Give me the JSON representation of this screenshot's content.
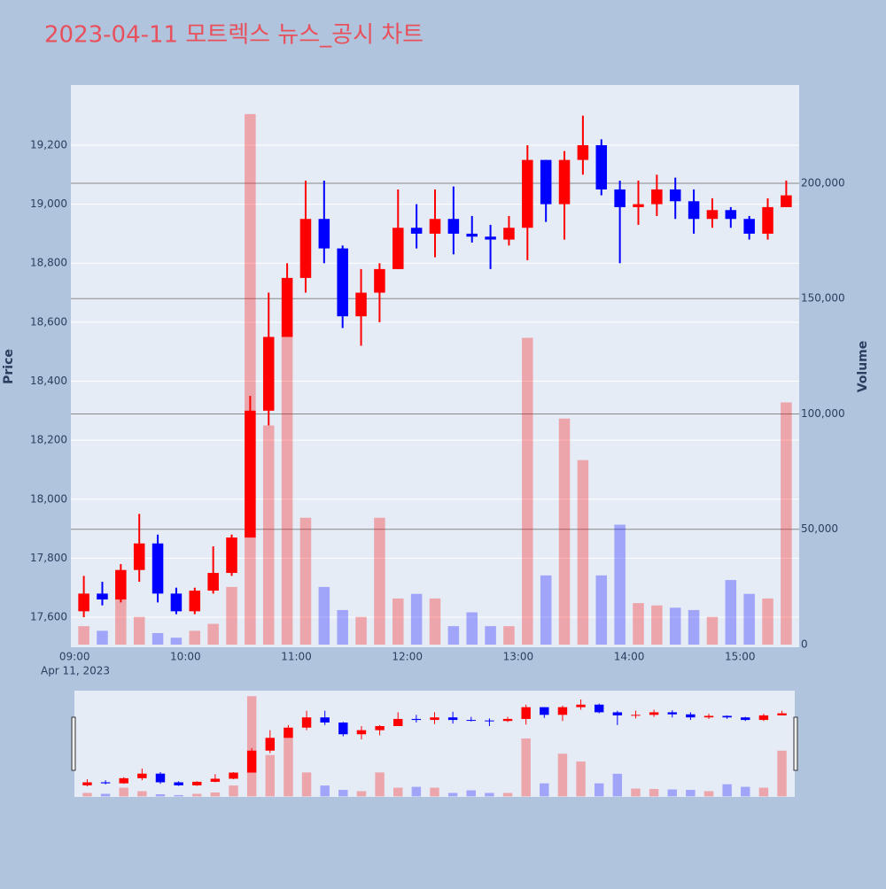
{
  "chart_data": {
    "type": "candlestick",
    "title": "2023-04-11 모트렉스 뉴스_공시 차트",
    "x_date_label": "Apr 11, 2023",
    "ylabel": "Price",
    "y2label": "Volume",
    "increasing_color": "#ff0000",
    "decreasing_color": "#0000ff",
    "grid": true,
    "rangeslider": true,
    "xlim": [
      "08:58",
      "15:32"
    ],
    "xticks": [
      "09:00",
      "10:00",
      "11:00",
      "12:00",
      "13:00",
      "14:00",
      "15:00"
    ],
    "ylim": [
      17498,
      19404
    ],
    "yticks": [
      {
        "value": 17600,
        "label": "17,600"
      },
      {
        "value": 17800,
        "label": "17,800"
      },
      {
        "value": 18000,
        "label": "18,000"
      },
      {
        "value": 18200,
        "label": "18,200"
      },
      {
        "value": 18400,
        "label": "18,400"
      },
      {
        "value": 18600,
        "label": "18,600"
      },
      {
        "value": 18800,
        "label": "18,800"
      },
      {
        "value": 19000,
        "label": "19,000"
      },
      {
        "value": 19200,
        "label": "19,200"
      }
    ],
    "y2lim": [
      -1150,
      242600
    ],
    "y2ticks": [
      0,
      {
        "value": 50000,
        "label": "50,000"
      },
      {
        "value": 100000,
        "label": "100,000"
      },
      {
        "value": 150000,
        "label": "150,000"
      },
      {
        "value": 200000,
        "label": "200,000"
      }
    ],
    "x": [
      "09:00",
      "09:10",
      "09:20",
      "09:30",
      "09:40",
      "09:50",
      "10:00",
      "10:10",
      "10:20",
      "10:30",
      "10:40",
      "10:50",
      "11:00",
      "11:10",
      "11:20",
      "11:30",
      "11:40",
      "11:50",
      "12:00",
      "12:10",
      "12:20",
      "12:30",
      "12:40",
      "12:50",
      "13:00",
      "13:10",
      "13:20",
      "13:30",
      "13:40",
      "13:50",
      "14:00",
      "14:10",
      "14:20",
      "14:30",
      "14:40",
      "14:50",
      "15:00",
      "15:10",
      "15:20"
    ],
    "open": [
      17620,
      17680,
      17660,
      17760,
      17850,
      17680,
      17620,
      17690,
      17750,
      17870,
      18300,
      18550,
      18750,
      18950,
      18850,
      18620,
      18700,
      18780,
      18920,
      18900,
      18950,
      18900,
      18890,
      18880,
      18920,
      19150,
      19000,
      19150,
      19200,
      19050,
      18990,
      19000,
      19050,
      19010,
      18950,
      18980,
      18950,
      18900,
      18990
    ],
    "high": [
      17740,
      17720,
      17780,
      17950,
      17880,
      17700,
      17700,
      17840,
      17880,
      18350,
      18700,
      18800,
      19080,
      19080,
      18860,
      18780,
      18800,
      19050,
      19000,
      19050,
      19060,
      18960,
      18930,
      18960,
      19200,
      19150,
      19180,
      19300,
      19220,
      19080,
      19080,
      19100,
      19090,
      19050,
      19020,
      18990,
      18960,
      19020,
      19080
    ],
    "low": [
      17600,
      17640,
      17650,
      17720,
      17650,
      17610,
      17610,
      17680,
      17740,
      17870,
      18250,
      18550,
      18700,
      18800,
      18580,
      18520,
      18600,
      18780,
      18850,
      18820,
      18830,
      18870,
      18780,
      18860,
      18810,
      18940,
      18880,
      19100,
      19030,
      18800,
      18930,
      18960,
      18950,
      18900,
      18920,
      18920,
      18880,
      18880,
      18990
    ],
    "close": [
      17680,
      17660,
      17760,
      17850,
      17680,
      17620,
      17690,
      17750,
      17870,
      18300,
      18550,
      18750,
      18950,
      18850,
      18620,
      18700,
      18780,
      18920,
      18900,
      18950,
      18900,
      18890,
      18880,
      18920,
      19150,
      19000,
      19150,
      19200,
      19050,
      18990,
      19000,
      19050,
      19010,
      18950,
      18980,
      18950,
      18900,
      18990,
      19030
    ],
    "volume": [
      8000,
      6000,
      20000,
      12000,
      5000,
      3000,
      6000,
      9000,
      25000,
      230000,
      95000,
      145000,
      55000,
      25000,
      15000,
      12000,
      55000,
      20000,
      22000,
      20000,
      8000,
      14000,
      8000,
      8000,
      133000,
      30000,
      98000,
      80000,
      30000,
      52000,
      18000,
      17000,
      16000,
      15000,
      12000,
      28000,
      22000,
      20000,
      105000
    ]
  }
}
